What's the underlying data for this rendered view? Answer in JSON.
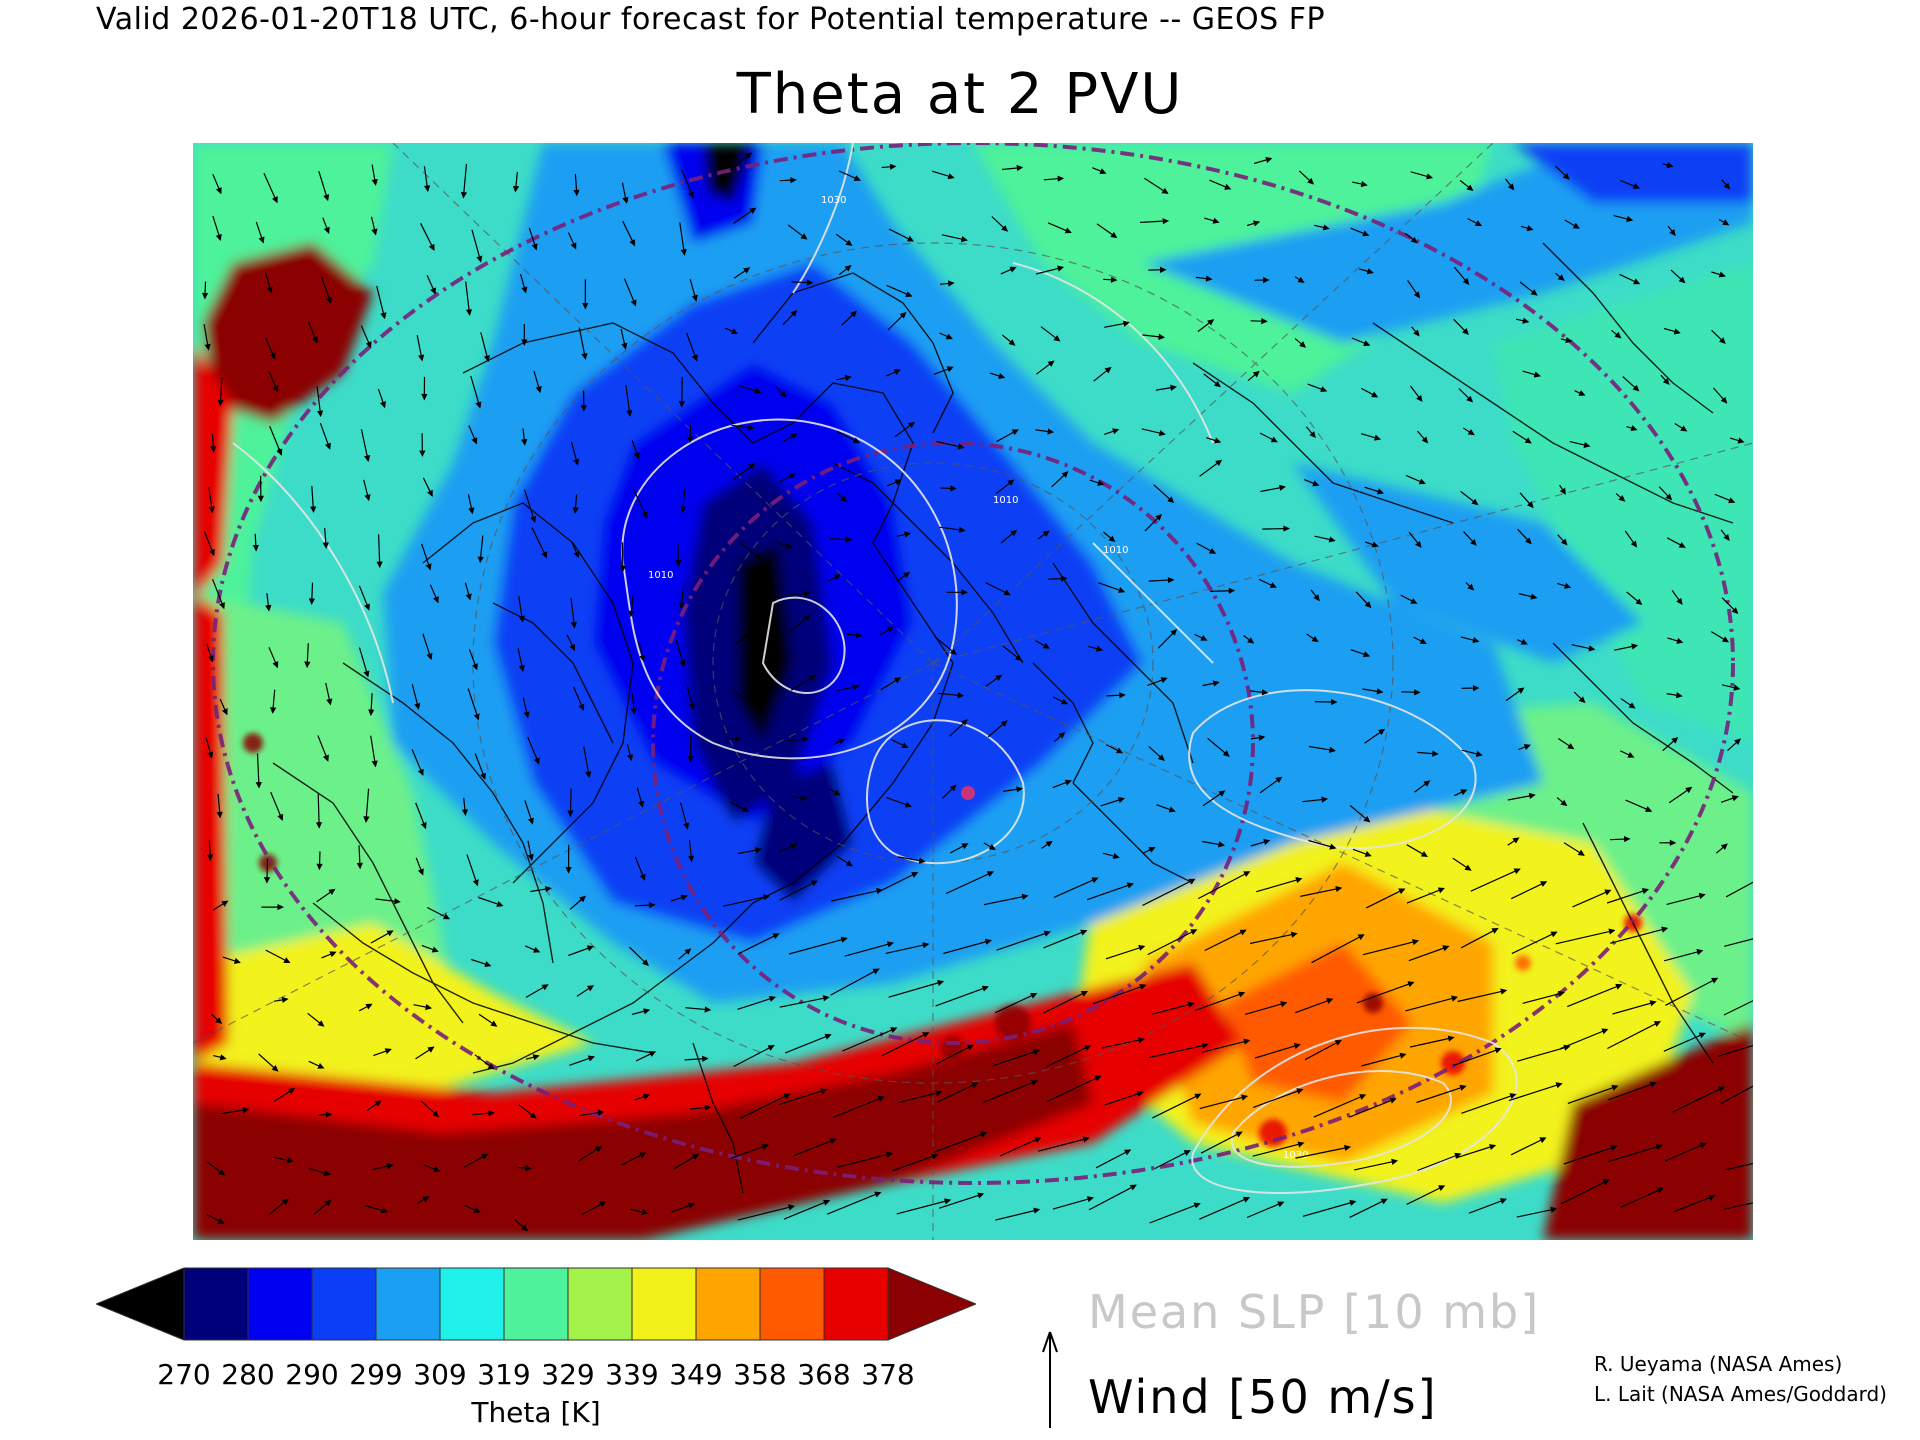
{
  "header": {
    "valid_line": "Valid 2026-01-20T18 UTC, 6-hour forecast for Potential temperature -- GEOS FP",
    "title": "Theta at 2 PVU"
  },
  "colorbar": {
    "ticks": [
      "270",
      "280",
      "290",
      "299",
      "309",
      "319",
      "329",
      "339",
      "349",
      "358",
      "368",
      "378"
    ],
    "colors": [
      "#000000",
      "#00007a",
      "#0000f0",
      "#0a3ff5",
      "#1a9ff2",
      "#1ff0ea",
      "#4df29a",
      "#a2f24a",
      "#f2f21a",
      "#ffa500",
      "#ff5a00",
      "#e60000",
      "#8b0000"
    ],
    "title": "Theta [K]"
  },
  "legend": {
    "slp": "Mean SLP [10 mb]",
    "wind": "Wind [50 m/s]"
  },
  "credits": {
    "line1": "R. Ueyama (NASA Ames)",
    "line2": "L. Lait (NASA Ames/Goddard)"
  },
  "map": {
    "contour_labels": [
      "1010",
      "1010",
      "1010",
      "1030",
      "1030"
    ],
    "contour_color": "#e6e6e6",
    "boundary_color": "#000000",
    "great_circle_color": "#7a1f7a"
  }
}
